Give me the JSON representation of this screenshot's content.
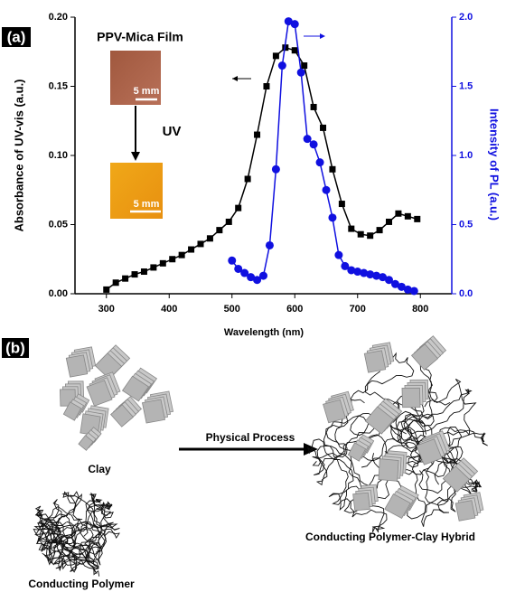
{
  "chart_data": {
    "type": "line",
    "panel_label": "(a)",
    "xlabel": "Wavelength (nm)",
    "ylabel": "Absorbance of UV-vis (a.u.)",
    "y2label": "Intensity of PL (a.u.)",
    "inset_title": "PPV-Mica Film",
    "inset_scale_top": "5 mm",
    "inset_step": "UV",
    "inset_scale_bottom": "5 mm",
    "xlim": [
      250,
      850
    ],
    "xticks": [
      300,
      400,
      500,
      600,
      700,
      800
    ],
    "ylim": [
      0,
      0.2
    ],
    "yticks": [
      {
        "value": 0,
        "label": "0.00"
      },
      {
        "value": 0.05,
        "label": "0.05"
      },
      {
        "value": 0.1,
        "label": "0.10"
      },
      {
        "value": 0.15,
        "label": "0.15"
      },
      {
        "value": 0.2,
        "label": "0.20"
      }
    ],
    "y2lim": [
      0,
      2
    ],
    "y2ticks": [
      {
        "value": 0,
        "label": "0.0"
      },
      {
        "value": 0.5,
        "label": "0.5"
      },
      {
        "value": 1,
        "label": "1.0"
      },
      {
        "value": 1.5,
        "label": "1.5"
      },
      {
        "value": 2,
        "label": "2.0"
      }
    ],
    "series": [
      {
        "color": "#000000",
        "marker": "square",
        "x": [
          300,
          315,
          330,
          345,
          360,
          375,
          390,
          405,
          420,
          435,
          450,
          465,
          480,
          495,
          510,
          525,
          540,
          555,
          570,
          585,
          600,
          615,
          630,
          645,
          660,
          675,
          690,
          705,
          720,
          735,
          750,
          765,
          780,
          795
        ],
        "values": [
          0.003,
          0.008,
          0.011,
          0.014,
          0.016,
          0.019,
          0.022,
          0.025,
          0.028,
          0.032,
          0.036,
          0.04,
          0.046,
          0.052,
          0.062,
          0.083,
          0.115,
          0.15,
          0.172,
          0.178,
          0.176,
          0.165,
          0.135,
          0.12,
          0.09,
          0.065,
          0.047,
          0.043,
          0.042,
          0.046,
          0.052,
          0.058,
          0.056,
          0.054
        ]
      },
      {
        "color": "#1010e0",
        "marker": "circle",
        "axis": "y2",
        "x": [
          500,
          510,
          520,
          530,
          540,
          550,
          560,
          570,
          580,
          590,
          600,
          610,
          620,
          630,
          640,
          650,
          660,
          670,
          680,
          690,
          700,
          710,
          720,
          730,
          740,
          750,
          760,
          770,
          780,
          790
        ],
        "values": [
          0.24,
          0.18,
          0.15,
          0.12,
          0.1,
          0.13,
          0.35,
          0.9,
          1.65,
          1.97,
          1.95,
          1.6,
          1.12,
          1.08,
          0.95,
          0.75,
          0.55,
          0.28,
          0.2,
          0.17,
          0.16,
          0.15,
          0.14,
          0.13,
          0.12,
          0.1,
          0.07,
          0.05,
          0.03,
          0.02
        ]
      }
    ]
  },
  "diagram": {
    "panel_label": "(b)",
    "clay": "Clay",
    "polymer": "Conducting Polymer",
    "process": "Physical Process",
    "hybrid": "Conducting Polymer-Clay Hybrid"
  }
}
